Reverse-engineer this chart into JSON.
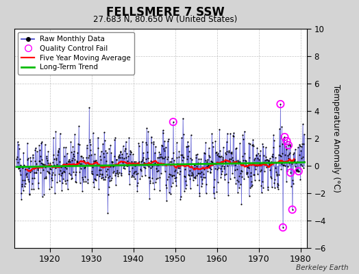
{
  "title": "FELLSMERE 7 SSW",
  "subtitle": "27.683 N, 80.650 W (United States)",
  "ylabel": "Temperature Anomaly (°C)",
  "attribution": "Berkeley Earth",
  "year_start": 1912,
  "year_end": 1980,
  "ylim": [
    -6,
    10
  ],
  "yticks": [
    -6,
    -4,
    -2,
    0,
    2,
    4,
    6,
    8,
    10
  ],
  "background_color": "#d4d4d4",
  "plot_bg_color": "#ffffff",
  "raw_line_color": "#4444cc",
  "raw_marker_color": "#000000",
  "qc_fail_color": "#ff00ff",
  "moving_avg_color": "#ff0000",
  "trend_color": "#00bb00",
  "seed": 42,
  "qc_times": [
    1949.5,
    1975.2,
    1975.8,
    1976.2,
    1976.7,
    1977.1,
    1977.6,
    1978.0,
    1979.5
  ],
  "qc_vals": [
    3.2,
    4.5,
    -4.5,
    2.1,
    1.8,
    1.5,
    -0.5,
    -3.2,
    -0.4
  ],
  "xticks": [
    1920,
    1930,
    1940,
    1950,
    1960,
    1970,
    1980
  ]
}
